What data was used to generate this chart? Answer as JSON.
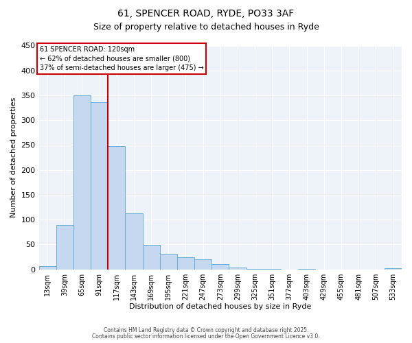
{
  "title1": "61, SPENCER ROAD, RYDE, PO33 3AF",
  "title2": "Size of property relative to detached houses in Ryde",
  "xlabel": "Distribution of detached houses by size in Ryde",
  "ylabel": "Number of detached properties",
  "bar_labels": [
    "13sqm",
    "39sqm",
    "65sqm",
    "91sqm",
    "117sqm",
    "143sqm",
    "169sqm",
    "195sqm",
    "221sqm",
    "247sqm",
    "273sqm",
    "299sqm",
    "325sqm",
    "351sqm",
    "377sqm",
    "403sqm",
    "429sqm",
    "455sqm",
    "481sqm",
    "507sqm",
    "533sqm"
  ],
  "bar_values": [
    6,
    89,
    350,
    336,
    248,
    113,
    49,
    31,
    25,
    20,
    10,
    4,
    1,
    1,
    0,
    1,
    0,
    0,
    0,
    0,
    2
  ],
  "bar_color": "#c5d8f0",
  "bar_edge_color": "#6aaed6",
  "background_color": "#eef3fa",
  "ylim": [
    0,
    450
  ],
  "yticks": [
    0,
    50,
    100,
    150,
    200,
    250,
    300,
    350,
    400,
    450
  ],
  "vline_color": "#cc0000",
  "annotation_line1": "61 SPENCER ROAD: 120sqm",
  "annotation_line2": "← 62% of detached houses are smaller (800)",
  "annotation_line3": "37% of semi-detached houses are larger (475) →",
  "annotation_box_facecolor": "#ffffff",
  "annotation_box_edgecolor": "#cc0000",
  "footer1": "Contains HM Land Registry data © Crown copyright and database right 2025.",
  "footer2": "Contains public sector information licensed under the Open Government Licence v3.0."
}
